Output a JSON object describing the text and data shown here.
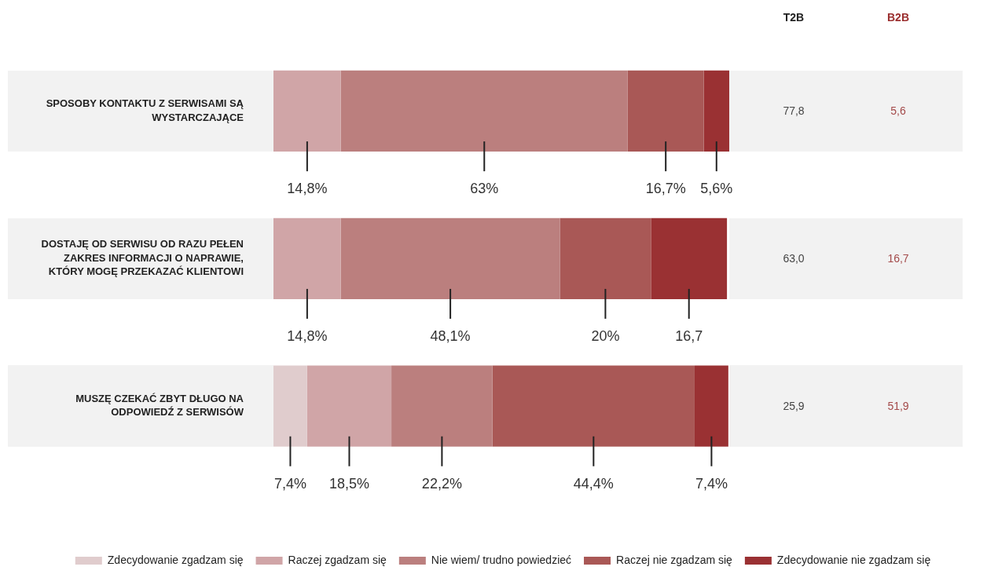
{
  "chart_data": {
    "type": "bar",
    "orientation": "horizontal",
    "stacked": true,
    "categories": [
      "SPOSOBY KONTAKTU Z SERWISAMI SĄ WYSTARCZAJĄCE",
      "DOSTAJĘ OD SERWISU OD RAZU PEŁEN ZAKRES INFORMACJI O NAPRAWIE, KTÓRY MOGĘ PRZEKAZAĆ KLIENTOWI",
      "MUSZĘ CZEKAĆ ZBYT DŁUGO NA ODPOWIEDŹ Z SERWISÓW"
    ],
    "series": [
      {
        "name": "Zdecydowanie zgadzam się",
        "color": "#e0cccd",
        "values": [
          null,
          null,
          7.4
        ],
        "value_labels": [
          null,
          null,
          "7,4%"
        ]
      },
      {
        "name": "Raczej zgadzam się",
        "color": "#d0a5a7",
        "values": [
          14.8,
          14.8,
          18.5
        ],
        "value_labels": [
          "14,8%",
          "14,8%",
          "18,5%"
        ]
      },
      {
        "name": "Nie wiem/ trudno powiedzieć",
        "color": "#bb7f7e",
        "values": [
          63,
          48.1,
          22.2
        ],
        "value_labels": [
          "63%",
          "48,1%",
          "22,2%"
        ]
      },
      {
        "name": "Raczej nie zgadzam się",
        "color": "#a95856",
        "values": [
          16.7,
          20,
          44.4
        ],
        "value_labels": [
          "16,7%",
          "20%",
          "44,4%"
        ]
      },
      {
        "name": "Zdecydowanie nie zgadzam się",
        "color": "#9a3133",
        "values": [
          5.6,
          16.7,
          7.4
        ],
        "value_labels": [
          "5,6%",
          "16,7",
          "7,4%"
        ]
      }
    ],
    "xlim": [
      0,
      100.1
    ],
    "tick_labels": "y",
    "legend": "bottom",
    "annotations": [
      "T2B",
      "B2B",
      "77,8",
      "5,6",
      "63,0",
      "16,7",
      "25,9",
      "51,9"
    ]
  }
}
